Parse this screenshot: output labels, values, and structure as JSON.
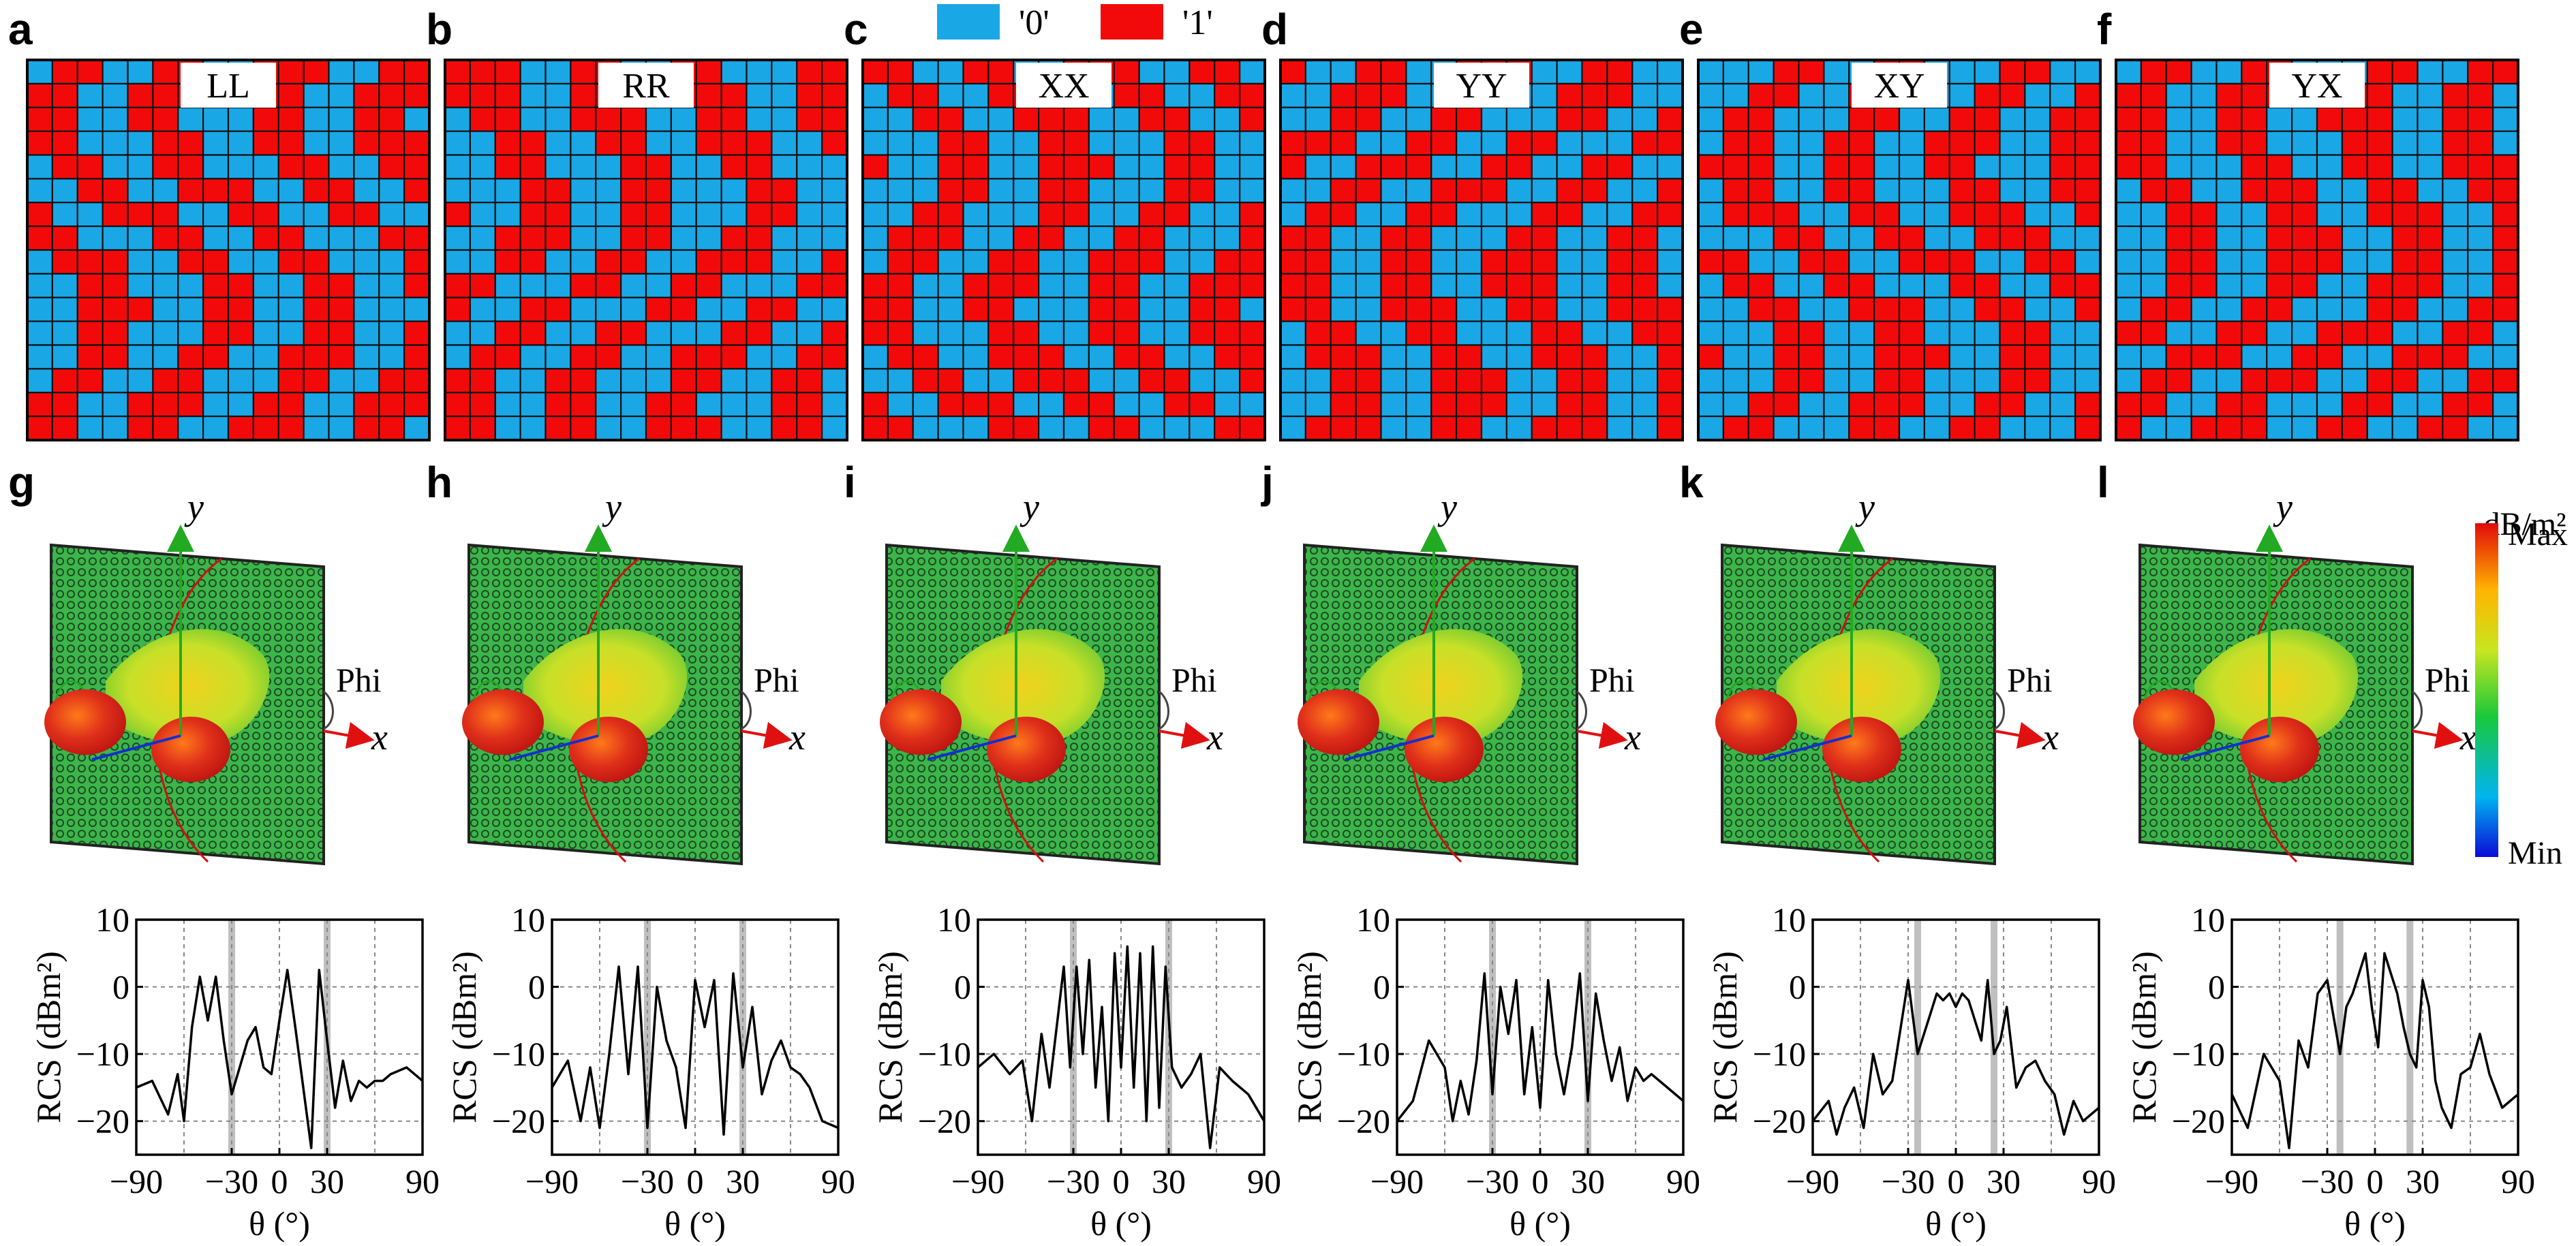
{
  "legend": {
    "items": [
      {
        "label": "'0'",
        "color": "#1aa7e6"
      },
      {
        "label": "'1'",
        "color": "#f20a0a"
      }
    ]
  },
  "colors": {
    "zero": "#1aa7e6",
    "one": "#f20a0a",
    "grid_line": "#111111",
    "metasurface": "#3cb54a",
    "highlight": "#bfbfbf"
  },
  "panels_top": [
    {
      "letter": "a",
      "code": "LL"
    },
    {
      "letter": "b",
      "code": "RR"
    },
    {
      "letter": "c",
      "code": "XX"
    },
    {
      "letter": "d",
      "code": "YY"
    },
    {
      "letter": "e",
      "code": "XY"
    },
    {
      "letter": "f",
      "code": "YX"
    }
  ],
  "panels_mid": [
    {
      "letter": "g",
      "y_axis": "y",
      "x_axis": "x",
      "phi": "Phi"
    },
    {
      "letter": "h",
      "y_axis": "y",
      "x_axis": "x",
      "phi": "Phi"
    },
    {
      "letter": "i",
      "y_axis": "y",
      "x_axis": "x",
      "phi": "Phi"
    },
    {
      "letter": "j",
      "y_axis": "y",
      "x_axis": "x",
      "phi": "Phi"
    },
    {
      "letter": "k",
      "y_axis": "y",
      "x_axis": "x",
      "phi": "Phi"
    },
    {
      "letter": "l",
      "y_axis": "y",
      "x_axis": "x",
      "phi": "Phi"
    }
  ],
  "colorbar": {
    "unit": "dB/m²",
    "max_label": "Max",
    "min_label": "Min"
  },
  "chart_data": [
    {
      "type": "line",
      "ylabel": "RCS (dBm²)",
      "xlabel": "θ (°)",
      "xlim": [
        -90,
        90
      ],
      "ylim": [
        -25,
        10
      ],
      "xticks": [
        "−90",
        "−30",
        "0",
        "30",
        "90"
      ],
      "yticks": [
        "10",
        "0",
        "−10",
        "−20"
      ],
      "highlight_x": [
        -30,
        30
      ],
      "x": [
        -90,
        -80,
        -70,
        -64,
        -60,
        -55,
        -50,
        -45,
        -40,
        -35,
        -30,
        -25,
        -20,
        -15,
        -10,
        -5,
        0,
        5,
        10,
        15,
        20,
        25,
        30,
        35,
        40,
        45,
        50,
        55,
        60,
        65,
        70,
        80,
        90
      ],
      "y": [
        -15,
        -14,
        -19,
        -13,
        -20,
        -6,
        1.5,
        -5,
        1.5,
        -8,
        -16,
        -12,
        -8,
        -6,
        -12,
        -13,
        -5,
        2.5,
        -6,
        -15,
        -24,
        2.5,
        -8,
        -18,
        -11,
        -17,
        -14,
        -15,
        -14,
        -14,
        -13,
        -12,
        -14
      ]
    },
    {
      "type": "line",
      "ylabel": "RCS (dBm²)",
      "xlabel": "θ (°)",
      "xlim": [
        -90,
        90
      ],
      "ylim": [
        -25,
        10
      ],
      "xticks": [
        "−90",
        "−30",
        "0",
        "30",
        "90"
      ],
      "yticks": [
        "10",
        "0",
        "−10",
        "−20"
      ],
      "highlight_x": [
        -30,
        30
      ],
      "x": [
        -90,
        -80,
        -72,
        -66,
        -60,
        -54,
        -48,
        -42,
        -36,
        -30,
        -24,
        -18,
        -12,
        -6,
        0,
        6,
        12,
        18,
        24,
        30,
        36,
        42,
        48,
        54,
        60,
        66,
        72,
        80,
        90
      ],
      "y": [
        -15,
        -11,
        -20,
        -12,
        -21,
        -10,
        3,
        -13,
        3,
        -21,
        0,
        -8,
        -12,
        -21,
        1,
        -6,
        1,
        -22,
        2,
        -12,
        -3,
        -16,
        -11,
        -8,
        -12,
        -13,
        -15,
        -20,
        -21
      ]
    },
    {
      "type": "line",
      "ylabel": "RCS (dBm²)",
      "xlabel": "θ (°)",
      "xlim": [
        -90,
        90
      ],
      "ylim": [
        -25,
        10
      ],
      "xticks": [
        "−90",
        "−30",
        "0",
        "30",
        "90"
      ],
      "yticks": [
        "10",
        "0",
        "−10",
        "−20"
      ],
      "highlight_x": [
        -30,
        30
      ],
      "x": [
        -90,
        -80,
        -70,
        -62,
        -56,
        -50,
        -45,
        -40,
        -36,
        -32,
        -28,
        -24,
        -20,
        -16,
        -12,
        -8,
        -4,
        0,
        4,
        8,
        12,
        16,
        20,
        24,
        28,
        32,
        38,
        44,
        50,
        56,
        62,
        70,
        80,
        90
      ],
      "y": [
        -12,
        -10,
        -13,
        -11,
        -20,
        -7,
        -15,
        -5,
        3,
        -12,
        3,
        -10,
        4,
        -15,
        -3,
        -20,
        5,
        -12,
        6,
        -15,
        5,
        -20,
        6,
        -18,
        3,
        -12,
        -15,
        -13,
        -10,
        -24,
        -12,
        -14,
        -16,
        -20
      ]
    },
    {
      "type": "line",
      "ylabel": "RCS (dBm²)",
      "xlabel": "θ (°)",
      "xlim": [
        -90,
        90
      ],
      "ylim": [
        -25,
        10
      ],
      "xticks": [
        "−90",
        "−30",
        "0",
        "30",
        "90"
      ],
      "yticks": [
        "10",
        "0",
        "−10",
        "−20"
      ],
      "highlight_x": [
        -30,
        30
      ],
      "x": [
        -90,
        -80,
        -70,
        -60,
        -55,
        -50,
        -45,
        -40,
        -35,
        -30,
        -25,
        -20,
        -15,
        -10,
        -5,
        0,
        5,
        10,
        15,
        20,
        25,
        30,
        35,
        40,
        45,
        50,
        55,
        60,
        65,
        70,
        80,
        90
      ],
      "y": [
        -20,
        -17,
        -8,
        -12,
        -20,
        -14,
        -19,
        -11,
        2,
        -16,
        0,
        -7,
        1,
        -16,
        -6,
        -18,
        1,
        -10,
        -16,
        -9,
        2,
        -17,
        -1,
        -8,
        -14,
        -9,
        -17,
        -12,
        -14,
        -13,
        -15,
        -17
      ]
    },
    {
      "type": "line",
      "ylabel": "RCS (dBm²)",
      "xlabel": "θ (°)",
      "xlim": [
        -90,
        90
      ],
      "ylim": [
        -25,
        10
      ],
      "xticks": [
        "−90",
        "−30",
        "0",
        "30",
        "90"
      ],
      "yticks": [
        "10",
        "0",
        "−10",
        "−20"
      ],
      "highlight_x": [
        -24,
        24
      ],
      "x": [
        -90,
        -80,
        -75,
        -70,
        -64,
        -58,
        -52,
        -46,
        -40,
        -34,
        -30,
        -24,
        -20,
        -16,
        -12,
        -8,
        -4,
        0,
        4,
        8,
        12,
        16,
        20,
        24,
        28,
        32,
        38,
        44,
        50,
        56,
        62,
        68,
        74,
        80,
        90
      ],
      "y": [
        -20,
        -17,
        -22,
        -18,
        -15,
        -21,
        -10,
        -16,
        -14,
        -5,
        1,
        -10,
        -7,
        -4,
        -1,
        -2,
        -1,
        -3,
        -1,
        -2,
        -5,
        -8,
        1,
        -10,
        -8,
        -3,
        -15,
        -12,
        -11,
        -14,
        -16,
        -22,
        -17,
        -20,
        -18
      ]
    },
    {
      "type": "line",
      "ylabel": "RCS (dBm²)",
      "xlabel": "θ (°)",
      "xlim": [
        -90,
        90
      ],
      "ylim": [
        -25,
        10
      ],
      "xticks": [
        "−90",
        "−30",
        "0",
        "30",
        "90"
      ],
      "yticks": [
        "10",
        "0",
        "−10",
        "−20"
      ],
      "highlight_x": [
        -22,
        22
      ],
      "x": [
        -90,
        -80,
        -70,
        -60,
        -54,
        -48,
        -42,
        -36,
        -30,
        -22,
        -18,
        -14,
        -10,
        -6,
        -2,
        2,
        6,
        10,
        14,
        18,
        22,
        26,
        30,
        34,
        38,
        42,
        48,
        54,
        60,
        66,
        72,
        80,
        90
      ],
      "y": [
        -16,
        -21,
        -10,
        -14,
        -24,
        -8,
        -12,
        -1,
        1,
        -10,
        -3,
        -1,
        2,
        5,
        -3,
        -9,
        5,
        2,
        -1,
        -6,
        -10,
        -12,
        1,
        -3,
        -14,
        -18,
        -21,
        -13,
        -12,
        -7,
        -13,
        -18,
        -16
      ]
    }
  ]
}
